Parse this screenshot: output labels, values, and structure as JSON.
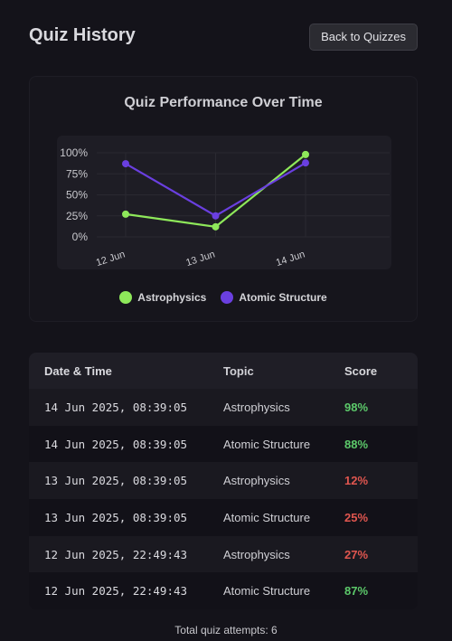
{
  "header": {
    "title": "Quiz History",
    "back_label": "Back to Quizzes"
  },
  "chart_data": {
    "type": "line",
    "title": "Quiz Performance Over Time",
    "categories": [
      "12 Jun",
      "13 Jun",
      "14 Jun"
    ],
    "y_ticks": [
      "100%",
      "75%",
      "50%",
      "25%",
      "0%"
    ],
    "ylim": [
      0,
      100
    ],
    "grid": true,
    "legend_position": "bottom",
    "series": [
      {
        "name": "Astrophysics",
        "values": [
          27,
          12,
          98
        ],
        "color": "#8ee85a"
      },
      {
        "name": "Atomic Structure",
        "values": [
          87,
          25,
          88
        ],
        "color": "#6a3fe0"
      }
    ]
  },
  "table": {
    "headers": {
      "date": "Date & Time",
      "topic": "Topic",
      "score": "Score"
    },
    "rows": [
      {
        "date": "14 Jun 2025, 08:39:05",
        "topic": "Astrophysics",
        "score": "98%",
        "level": "high"
      },
      {
        "date": "14 Jun 2025, 08:39:05",
        "topic": "Atomic Structure",
        "score": "88%",
        "level": "high"
      },
      {
        "date": "13 Jun 2025, 08:39:05",
        "topic": "Astrophysics",
        "score": "12%",
        "level": "low"
      },
      {
        "date": "13 Jun 2025, 08:39:05",
        "topic": "Atomic Structure",
        "score": "25%",
        "level": "low"
      },
      {
        "date": "12 Jun 2025, 22:49:43",
        "topic": "Astrophysics",
        "score": "27%",
        "level": "low"
      },
      {
        "date": "12 Jun 2025, 22:49:43",
        "topic": "Atomic Structure",
        "score": "87%",
        "level": "high"
      }
    ]
  },
  "footer": {
    "total_label": "Total quiz attempts: 6"
  }
}
